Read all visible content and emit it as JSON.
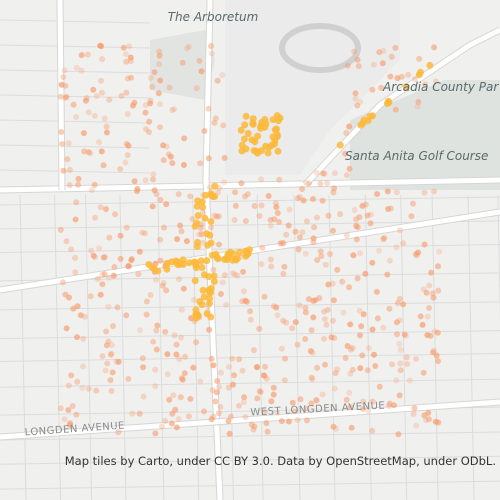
{
  "labels": {
    "arboretum": "The Arboretum",
    "park": "Arcadia County Par",
    "golf": "Santa Anita Golf Course",
    "west_longden": "WEST LONGDEN AVENUE",
    "longden": "LONGDEN AVENUE"
  },
  "attribution": "Map tiles by Carto, under CC BY 3.0. Data by OpenStreetMap, under ODbL."
}
